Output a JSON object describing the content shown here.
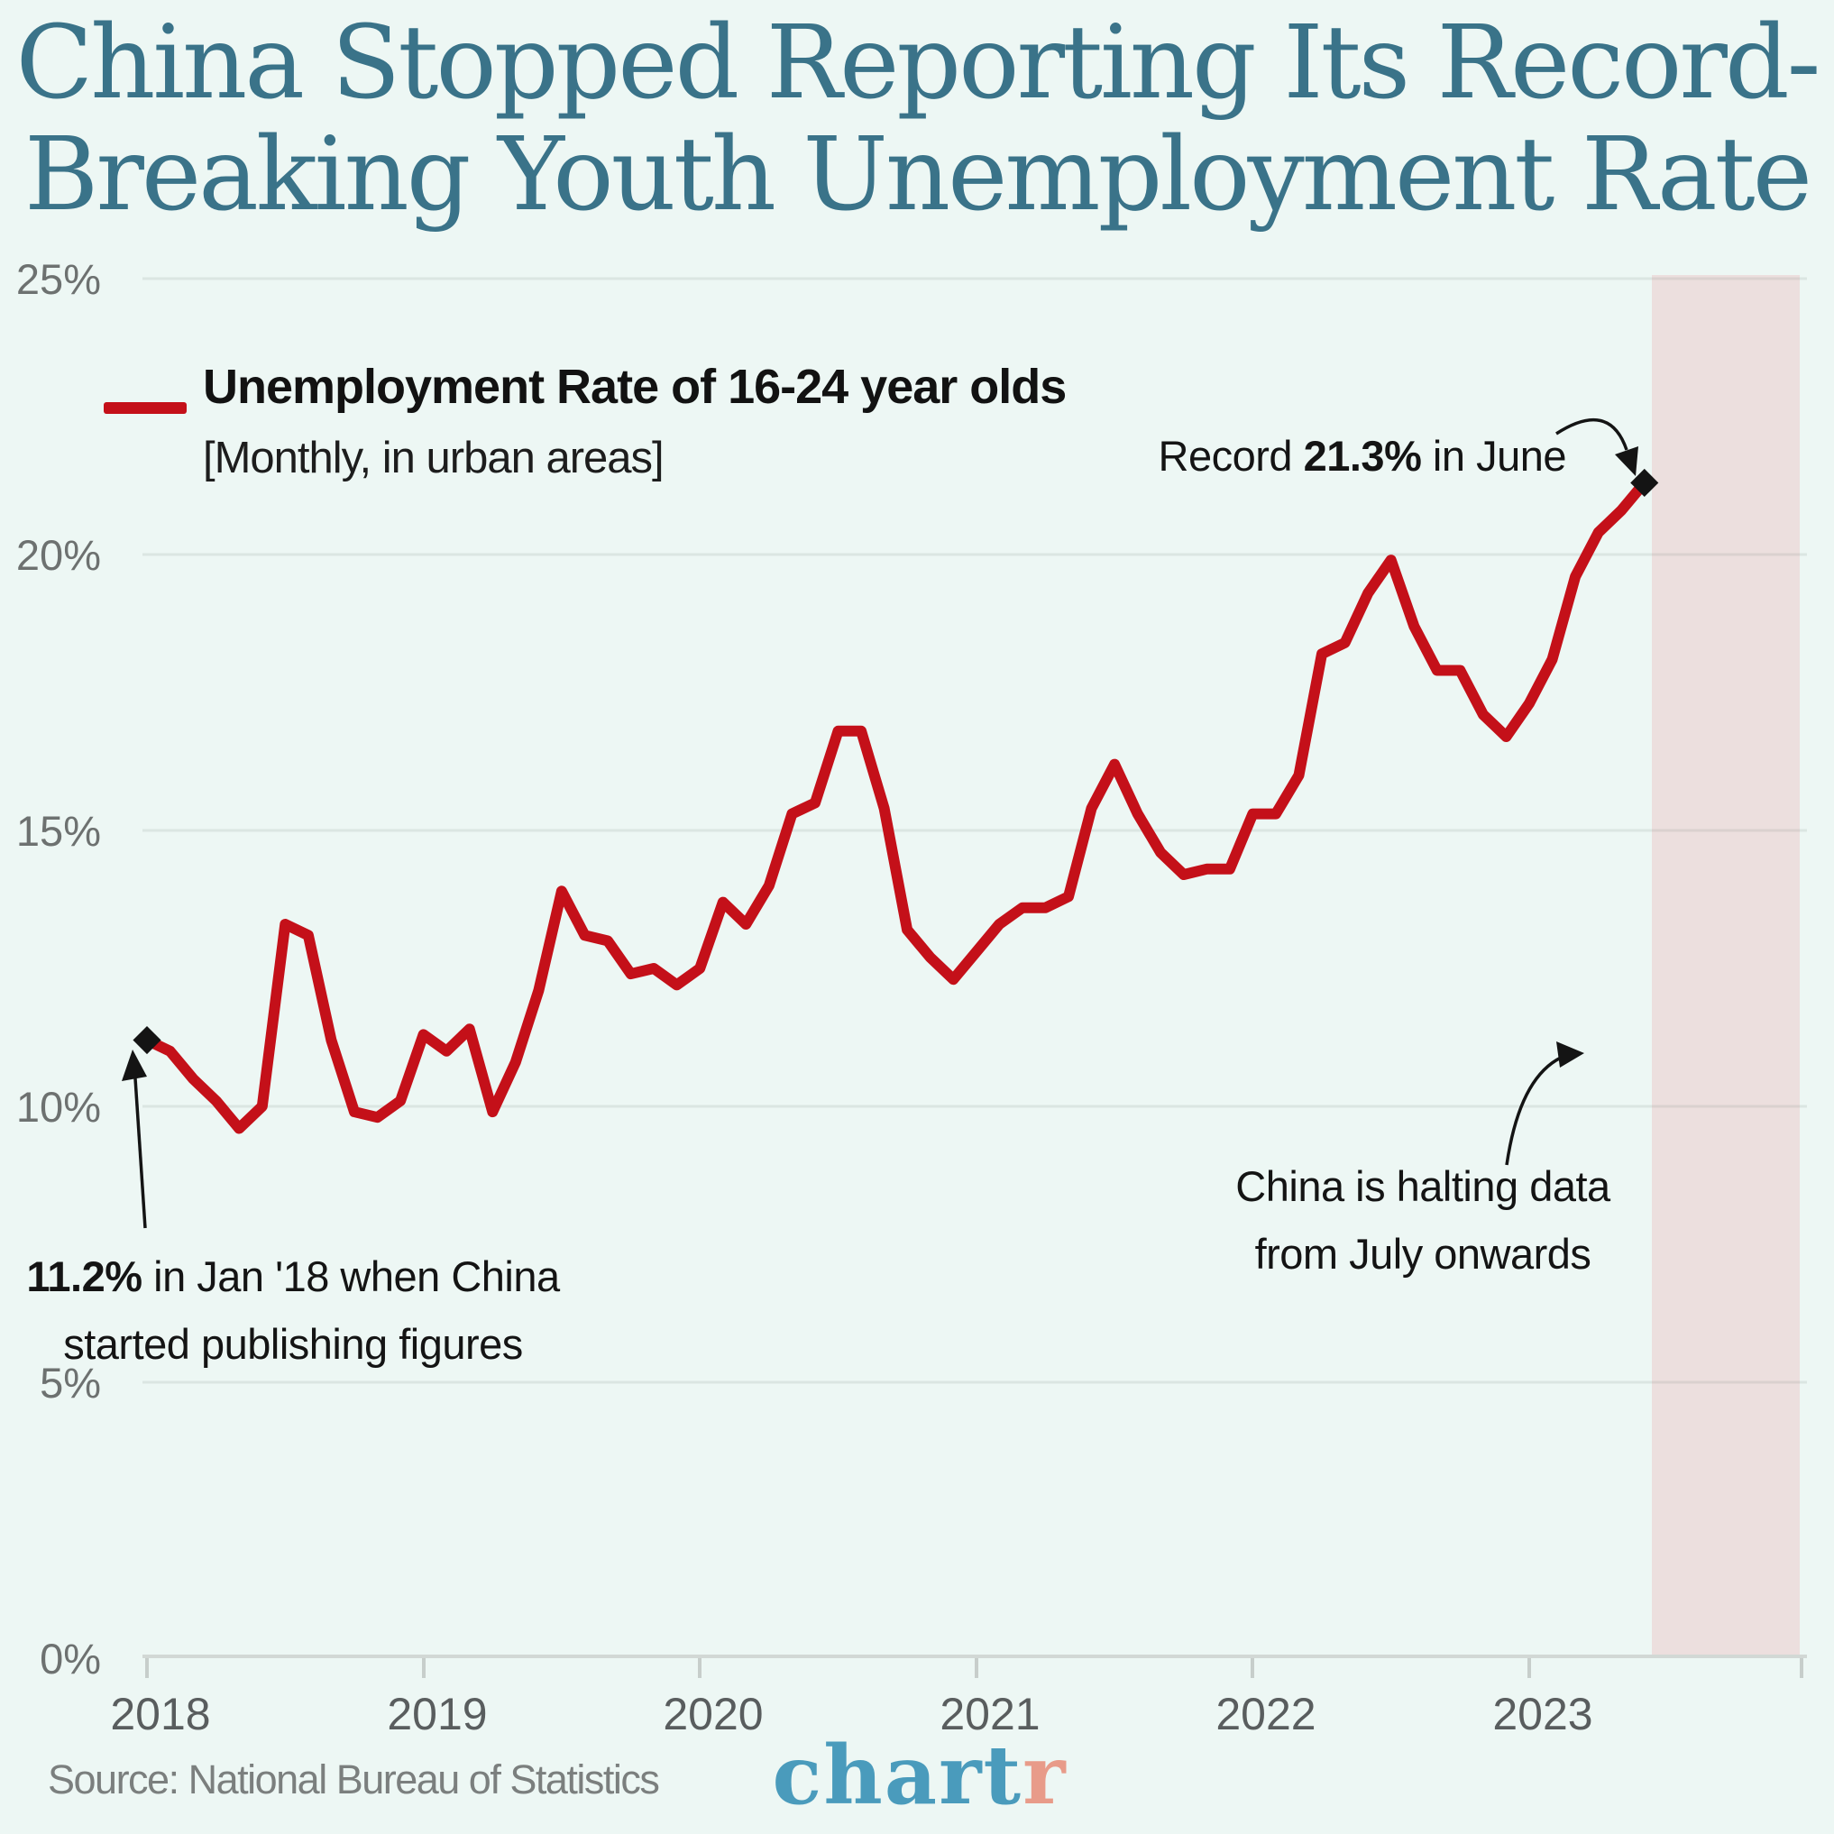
{
  "title": {
    "line1": "China Stopped Reporting Its Record-",
    "line2": "Breaking Youth Unemployment Rate"
  },
  "legend": {
    "label": "Unemployment Rate of 16-24 year olds",
    "sublabel": "[Monthly, in urban areas]"
  },
  "annotations": {
    "record": {
      "prefix": "Record ",
      "value": "21.3%",
      "suffix": " in June"
    },
    "start": {
      "value": "11.2%",
      "rest": " in Jan '18 when China",
      "line2": "started publishing figures"
    },
    "halt": {
      "line1": "China is halting data",
      "line2": "from July onwards"
    }
  },
  "axes": {
    "y_ticks": [
      "25%",
      "20%",
      "15%",
      "10%",
      "5%",
      "0%"
    ],
    "x_ticks": [
      "2018",
      "2019",
      "2020",
      "2021",
      "2022",
      "2023"
    ]
  },
  "footer": {
    "source": "Source: National Bureau of Statistics",
    "logo_main": "chart",
    "logo_accent": "r"
  },
  "colors": {
    "background": "#edf7f4",
    "title": "#3a7389",
    "line": "#c41019",
    "shade": "#ecdfde",
    "marker": "#141414",
    "logo_blue": "#4a9bbc",
    "logo_salmon": "#e89b89"
  },
  "chart_data": {
    "type": "line",
    "title": "Unemployment Rate of 16-24 year olds [Monthly, in urban areas]",
    "unit": "%",
    "ylim": [
      0,
      25
    ],
    "y_tick_labels": [
      "0%",
      "5%",
      "10%",
      "15%",
      "20%",
      "25%"
    ],
    "x_tick_labels": [
      "2018",
      "2019",
      "2020",
      "2021",
      "2022",
      "2023"
    ],
    "frequency": "monthly",
    "grid": "horizontal",
    "legend_position": "top-left",
    "x": [
      "2018-01",
      "2018-02",
      "2018-03",
      "2018-04",
      "2018-05",
      "2018-06",
      "2018-07",
      "2018-08",
      "2018-09",
      "2018-10",
      "2018-11",
      "2018-12",
      "2019-01",
      "2019-02",
      "2019-03",
      "2019-04",
      "2019-05",
      "2019-06",
      "2019-07",
      "2019-08",
      "2019-09",
      "2019-10",
      "2019-11",
      "2019-12",
      "2020-01",
      "2020-02",
      "2020-03",
      "2020-04",
      "2020-05",
      "2020-06",
      "2020-07",
      "2020-08",
      "2020-09",
      "2020-10",
      "2020-11",
      "2020-12",
      "2021-01",
      "2021-02",
      "2021-03",
      "2021-04",
      "2021-05",
      "2021-06",
      "2021-07",
      "2021-08",
      "2021-09",
      "2021-10",
      "2021-11",
      "2021-12",
      "2022-01",
      "2022-02",
      "2022-03",
      "2022-04",
      "2022-05",
      "2022-06",
      "2022-07",
      "2022-08",
      "2022-09",
      "2022-10",
      "2022-11",
      "2022-12",
      "2023-01",
      "2023-02",
      "2023-03",
      "2023-04",
      "2023-05",
      "2023-06"
    ],
    "series": [
      {
        "name": "Unemployment Rate of 16-24 year olds",
        "values": [
          11.2,
          11.0,
          10.5,
          10.1,
          9.6,
          10.0,
          13.3,
          13.1,
          11.2,
          9.9,
          9.8,
          10.1,
          11.3,
          11.0,
          11.4,
          9.9,
          10.8,
          12.1,
          13.9,
          13.1,
          13.0,
          12.4,
          12.5,
          12.2,
          12.5,
          13.7,
          13.3,
          14.0,
          15.3,
          15.5,
          16.8,
          16.8,
          15.4,
          13.2,
          12.7,
          12.3,
          12.8,
          13.3,
          13.6,
          13.6,
          13.8,
          15.4,
          16.2,
          15.3,
          14.6,
          14.2,
          14.3,
          14.3,
          15.3,
          15.3,
          16.0,
          18.2,
          18.4,
          19.3,
          19.9,
          18.7,
          17.9,
          17.9,
          17.1,
          16.7,
          17.3,
          18.1,
          19.6,
          20.4,
          20.8,
          21.3
        ]
      }
    ],
    "markers": [
      {
        "x": "2018-01",
        "value": 11.2,
        "note": "11.2% in Jan '18 when China started publishing figures"
      },
      {
        "x": "2023-06",
        "value": 21.3,
        "note": "Record 21.3% in June"
      }
    ],
    "shaded_region": {
      "from": "2023-07",
      "note": "China is halting data from July onwards"
    }
  }
}
